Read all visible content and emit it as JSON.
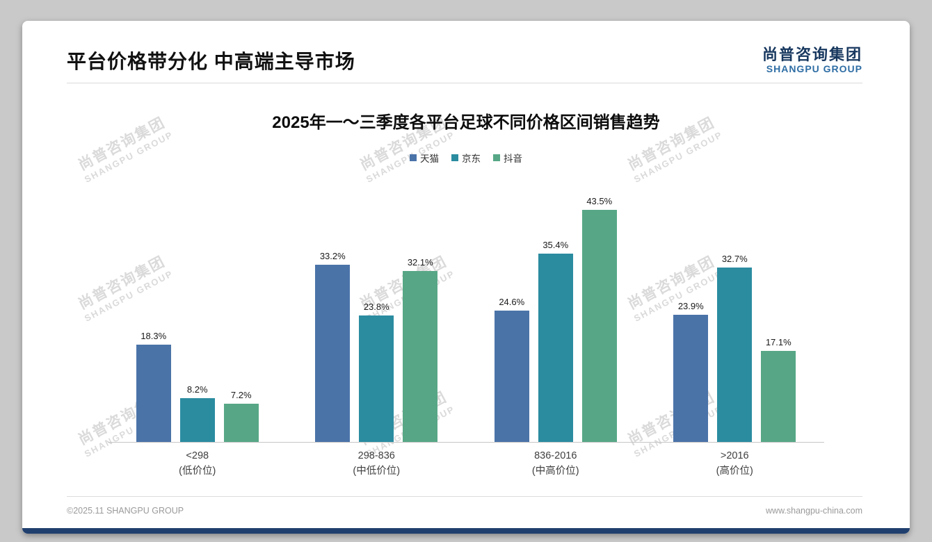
{
  "slide": {
    "title": "平台价格带分化 中高端主导市场",
    "logo": {
      "cn": "尚普咨询集团",
      "en": "SHANGPU GROUP"
    },
    "watermark": {
      "cn": "尚普咨询集团",
      "en": "SHANGPU GROUP"
    },
    "footer": {
      "left": "©2025.11 SHANGPU GROUP",
      "right": "www.shangpu-china.com"
    }
  },
  "chart_data": {
    "type": "bar",
    "title": "2025年一～三季度各平台足球不同价格区间销售趋势",
    "legend_position": "top-center",
    "grid": false,
    "unit": "%",
    "ylim": [
      0,
      45
    ],
    "categories": [
      {
        "range": "<298",
        "tier": "(低价位)"
      },
      {
        "range": "298-836",
        "tier": "(中低价位)"
      },
      {
        "range": "836-2016",
        "tier": "(中高价位)"
      },
      {
        "range": ">2016",
        "tier": "(高价位)"
      }
    ],
    "series": [
      {
        "name": "天猫",
        "color": "#4a73a8",
        "values": [
          18.3,
          33.2,
          24.6,
          23.9
        ]
      },
      {
        "name": "京东",
        "color": "#2b8ca0",
        "values": [
          8.2,
          23.8,
          35.4,
          32.7
        ]
      },
      {
        "name": "抖音",
        "color": "#57a786",
        "values": [
          7.2,
          32.1,
          43.5,
          17.1
        ]
      }
    ]
  }
}
